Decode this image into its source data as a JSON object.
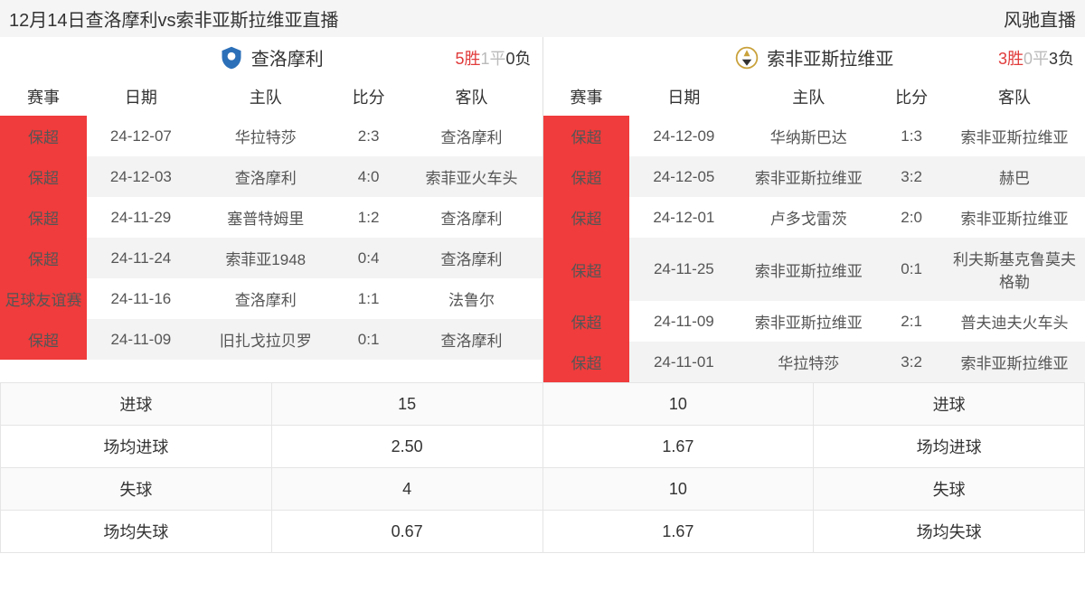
{
  "header": {
    "title": "12月14日查洛摩利vs索非亚斯拉维亚直播",
    "site": "风驰直播"
  },
  "left": {
    "team": "查洛摩利",
    "logo_color": "#2b6fb8",
    "record": {
      "wins": "5胜",
      "draws": "1平",
      "losses": "0负"
    },
    "columns": {
      "event": "赛事",
      "date": "日期",
      "home": "主队",
      "score": "比分",
      "away": "客队"
    },
    "rows": [
      {
        "event": "保超",
        "date": "24-12-07",
        "home": "华拉特莎",
        "score": "2:3",
        "away": "查洛摩利"
      },
      {
        "event": "保超",
        "date": "24-12-03",
        "home": "查洛摩利",
        "score": "4:0",
        "away": "索菲亚火车头"
      },
      {
        "event": "保超",
        "date": "24-11-29",
        "home": "塞普特姆里",
        "score": "1:2",
        "away": "查洛摩利"
      },
      {
        "event": "保超",
        "date": "24-11-24",
        "home": "索菲亚1948",
        "score": "0:4",
        "away": "查洛摩利"
      },
      {
        "event": "足球友谊赛",
        "date": "24-11-16",
        "home": "查洛摩利",
        "score": "1:1",
        "away": "法鲁尔"
      },
      {
        "event": "保超",
        "date": "24-11-09",
        "home": "旧扎戈拉贝罗",
        "score": "0:1",
        "away": "查洛摩利"
      }
    ]
  },
  "right": {
    "team": "索非亚斯拉维亚",
    "logo_color": "#c9a13a",
    "record": {
      "wins": "3胜",
      "draws": "0平",
      "losses": "3负"
    },
    "columns": {
      "event": "赛事",
      "date": "日期",
      "home": "主队",
      "score": "比分",
      "away": "客队"
    },
    "rows": [
      {
        "event": "保超",
        "date": "24-12-09",
        "home": "华纳斯巴达",
        "score": "1:3",
        "away": "索非亚斯拉维亚"
      },
      {
        "event": "保超",
        "date": "24-12-05",
        "home": "索非亚斯拉维亚",
        "score": "3:2",
        "away": "赫巴"
      },
      {
        "event": "保超",
        "date": "24-12-01",
        "home": "卢多戈雷茨",
        "score": "2:0",
        "away": "索非亚斯拉维亚"
      },
      {
        "event": "保超",
        "date": "24-11-25",
        "home": "索非亚斯拉维亚",
        "score": "0:1",
        "away": "利夫斯基克鲁莫夫格勒"
      },
      {
        "event": "保超",
        "date": "24-11-09",
        "home": "索非亚斯拉维亚",
        "score": "2:1",
        "away": "普夫迪夫火车头"
      },
      {
        "event": "保超",
        "date": "24-11-01",
        "home": "华拉特莎",
        "score": "3:2",
        "away": "索非亚斯拉维亚"
      }
    ]
  },
  "summary": {
    "rows": [
      {
        "label_l": "进球",
        "val_l": "15",
        "val_r": "10",
        "label_r": "进球"
      },
      {
        "label_l": "场均进球",
        "val_l": "2.50",
        "val_r": "1.67",
        "label_r": "场均进球"
      },
      {
        "label_l": "失球",
        "val_l": "4",
        "val_r": "10",
        "label_r": "失球"
      },
      {
        "label_l": "场均失球",
        "val_l": "0.67",
        "val_r": "1.67",
        "label_r": "场均失球"
      }
    ]
  },
  "style": {
    "event_tag_bg": "#f03c3c",
    "alt_row_bg": "#f3f3f3",
    "border_color": "#e0e0e0"
  }
}
